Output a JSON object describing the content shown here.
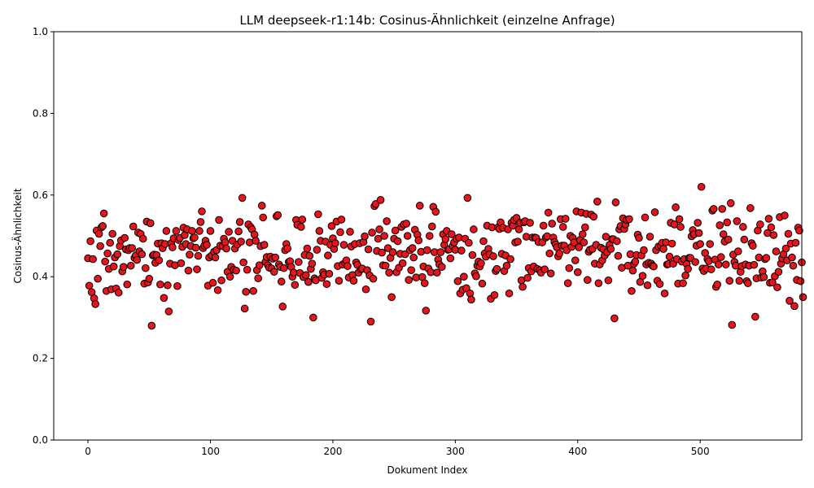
{
  "chart_data": {
    "type": "scatter",
    "title": "LLM deepseek-r1:14b: Cosinus-Ähnlichkeit (einzelne Anfrage)",
    "xlabel": "Dokument Index",
    "ylabel": "Cosinus-Ähnlichkeit",
    "xlim": [
      -28,
      583
    ],
    "ylim": [
      0.0,
      1.0
    ],
    "xticks": [
      0,
      100,
      200,
      300,
      400,
      500
    ],
    "yticks": [
      0.0,
      0.2,
      0.4,
      0.6,
      0.8,
      1.0
    ],
    "xtick_labels": [
      "0",
      "100",
      "200",
      "300",
      "400",
      "500"
    ],
    "ytick_labels": [
      "0.0",
      "0.2",
      "0.4",
      "0.6",
      "0.8",
      "1.0"
    ],
    "grid": false,
    "legend": "none",
    "marker_fill": "#e8141c",
    "marker_edge": "#000000",
    "series": [
      {
        "values": [
          0.445,
          0.378,
          0.487,
          0.362,
          0.443,
          0.347,
          0.333,
          0.513,
          0.395,
          0.505,
          0.475,
          0.521,
          0.524,
          0.555,
          0.437,
          0.365,
          0.457,
          0.419,
          0.483,
          0.369,
          0.505,
          0.425,
          0.447,
          0.371,
          0.455,
          0.361,
          0.475,
          0.489,
          0.413,
          0.424,
          0.495,
          0.467,
          0.381,
          0.465,
          0.47,
          0.427,
          0.47,
          0.523,
          0.446,
          0.452,
          0.441,
          0.508,
          0.462,
          0.505,
          0.455,
          0.493,
          0.383,
          0.421,
          0.535,
          0.386,
          0.395,
          0.531,
          0.28,
          0.452,
          0.454,
          0.434,
          0.453,
          0.481,
          0.44,
          0.381,
          0.482,
          0.47,
          0.348,
          0.48,
          0.512,
          0.379,
          0.315,
          0.432,
          0.482,
          0.472,
          0.494,
          0.428,
          0.512,
          0.377,
          0.49,
          0.495,
          0.433,
          0.473,
          0.52,
          0.502,
          0.48,
          0.516,
          0.415,
          0.454,
          0.475,
          0.512,
          0.494,
          0.496,
          0.471,
          0.418,
          0.451,
          0.512,
          0.534,
          0.56,
          0.47,
          0.476,
          0.488,
          0.478,
          0.378,
          0.447,
          0.512,
          0.452,
          0.385,
          0.461,
          0.447,
          0.465,
          0.367,
          0.539,
          0.476,
          0.391,
          0.475,
          0.493,
          0.484,
          0.469,
          0.412,
          0.51,
          0.4,
          0.424,
          0.488,
          0.417,
          0.469,
          0.415,
          0.479,
          0.511,
          0.534,
          0.486,
          0.593,
          0.435,
          0.322,
          0.363,
          0.417,
          0.528,
          0.484,
          0.521,
          0.516,
          0.365,
          0.503,
          0.488,
          0.416,
          0.396,
          0.428,
          0.475,
          0.574,
          0.545,
          0.478,
          0.436,
          0.448,
          0.428,
          0.422,
          0.449,
          0.42,
          0.444,
          0.412,
          0.447,
          0.548,
          0.551,
          0.43,
          0.424,
          0.388,
          0.327,
          0.421,
          0.465,
          0.48,
          0.469,
          0.436,
          0.438,
          0.424,
          0.4,
          0.41,
          0.38,
          0.539,
          0.527,
          0.436,
          0.409,
          0.522,
          0.54,
          0.399,
          0.453,
          0.404,
          0.469,
          0.387,
          0.451,
          0.419,
          0.432,
          0.3,
          0.396,
          0.391,
          0.466,
          0.553,
          0.512,
          0.488,
          0.397,
          0.411,
          0.405,
          0.486,
          0.382,
          0.452,
          0.407,
          0.478,
          0.524,
          0.494,
          0.468,
          0.482,
          0.535,
          0.426,
          0.39,
          0.509,
          0.54,
          0.43,
          0.478,
          0.434,
          0.44,
          0.426,
          0.398,
          0.51,
          0.474,
          0.404,
          0.39,
          0.48,
          0.435,
          0.429,
          0.41,
          0.482,
          0.418,
          0.42,
          0.485,
          0.499,
          0.369,
          0.416,
          0.467,
          0.403,
          0.29,
          0.508,
          0.395,
          0.573,
          0.578,
          0.463,
          0.493,
          0.516,
          0.588,
          0.459,
          0.428,
          0.5,
          0.427,
          0.536,
          0.47,
          0.41,
          0.446,
          0.35,
          0.46,
          0.493,
          0.513,
          0.411,
          0.487,
          0.422,
          0.456,
          0.522,
          0.433,
          0.528,
          0.455,
          0.53,
          0.5,
          0.392,
          0.465,
          0.416,
          0.47,
          0.447,
          0.515,
          0.398,
          0.503,
          0.489,
          0.574,
          0.461,
          0.399,
          0.425,
          0.384,
          0.317,
          0.465,
          0.42,
          0.5,
          0.411,
          0.523,
          0.571,
          0.46,
          0.559,
          0.41,
          0.442,
          0.43,
          0.46,
          0.424,
          0.504,
          0.478,
          0.492,
          0.512,
          0.466,
          0.467,
          0.445,
          0.504,
          0.475,
          0.484,
          0.466,
          0.493,
          0.389,
          0.496,
          0.359,
          0.464,
          0.368,
          0.4,
          0.493,
          0.372,
          0.593,
          0.483,
          0.359,
          0.344,
          0.453,
          0.516,
          0.408,
          0.401,
          0.427,
          0.437,
          0.425,
          0.433,
          0.383,
          0.487,
          0.457,
          0.449,
          0.525,
          0.468,
          0.455,
          0.346,
          0.521,
          0.45,
          0.355,
          0.414,
          0.419,
          0.521,
          0.517,
          0.533,
          0.456,
          0.52,
          0.414,
          0.452,
          0.427,
          0.516,
          0.359,
          0.443,
          0.532,
          0.525,
          0.539,
          0.484,
          0.544,
          0.486,
          0.516,
          0.532,
          0.391,
          0.375,
          0.533,
          0.536,
          0.498,
          0.397,
          0.421,
          0.532,
          0.413,
          0.496,
          0.425,
          0.496,
          0.495,
          0.419,
          0.485,
          0.416,
          0.41,
          0.484,
          0.525,
          0.418,
          0.496,
          0.499,
          0.557,
          0.457,
          0.408,
          0.53,
          0.496,
          0.485,
          0.479,
          0.472,
          0.45,
          0.457,
          0.541,
          0.476,
          0.522,
          0.476,
          0.542,
          0.465,
          0.384,
          0.421,
          0.5,
          0.473,
          0.495,
          0.484,
          0.44,
          0.56,
          0.411,
          0.472,
          0.49,
          0.557,
          0.504,
          0.484,
          0.521,
          0.554,
          0.392,
          0.461,
          0.466,
          0.552,
          0.468,
          0.547,
          0.432,
          0.478,
          0.584,
          0.384,
          0.43,
          0.471,
          0.44,
          0.467,
          0.452,
          0.498,
          0.46,
          0.391,
          0.478,
          0.468,
          0.492,
          0.492,
          0.298,
          0.582,
          0.487,
          0.451,
          0.516,
          0.524,
          0.422,
          0.543,
          0.517,
          0.528,
          0.539,
          0.427,
          0.541,
          0.455,
          0.365,
          0.415,
          0.432,
          0.437,
          0.453,
          0.503,
          0.495,
          0.387,
          0.452,
          0.402,
          0.465,
          0.545,
          0.43,
          0.379,
          0.434,
          0.498,
          0.432,
          0.427,
          0.425,
          0.558,
          0.465,
          0.39,
          0.474,
          0.382,
          0.476,
          0.483,
          0.468,
          0.359,
          0.484,
          0.43,
          0.431,
          0.449,
          0.532,
          0.481,
          0.432,
          0.528,
          0.57,
          0.443,
          0.383,
          0.541,
          0.522,
          0.437,
          0.384,
          0.443,
          0.403,
          0.431,
          0.419,
          0.446,
          0.446,
          0.499,
          0.514,
          0.504,
          0.436,
          0.476,
          0.532,
          0.507,
          0.48,
          0.62,
          0.42,
          0.414,
          0.458,
          0.42,
          0.443,
          0.438,
          0.48,
          0.418,
          0.562,
          0.566,
          0.442,
          0.375,
          0.381,
          0.43,
          0.526,
          0.448,
          0.566,
          0.504,
          0.486,
          0.43,
          0.533,
          0.491,
          0.39,
          0.58,
          0.282,
          0.454,
          0.436,
          0.427,
          0.536,
          0.462,
          0.39,
          0.412,
          0.426,
          0.522,
          0.491,
          0.43,
          0.389,
          0.384,
          0.427,
          0.568,
          0.482,
          0.476,
          0.429,
          0.302,
          0.396,
          0.513,
          0.447,
          0.528,
          0.398,
          0.413,
          0.399,
          0.443,
          0.446,
          0.507,
          0.542,
          0.385,
          0.521,
          0.386,
          0.502,
          0.401,
          0.462,
          0.374,
          0.412,
          0.546,
          0.432,
          0.445,
          0.455,
          0.55,
          0.469,
          0.44,
          0.505,
          0.341,
          0.481,
          0.447,
          0.427,
          0.328,
          0.483,
          0.392,
          0.52,
          0.513,
          0.389,
          0.435,
          0.35
        ]
      }
    ]
  }
}
